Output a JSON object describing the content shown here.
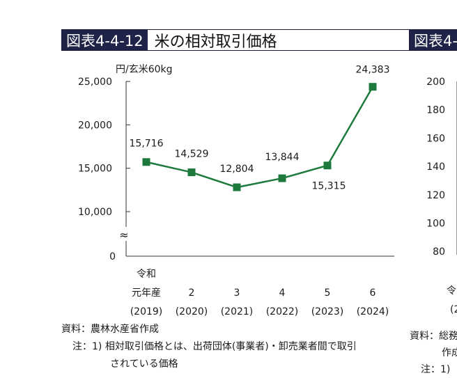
{
  "header_left": {
    "number": "図表4-4-12",
    "title": "米の相対取引価格"
  },
  "header_right": {
    "number": "図表4-"
  },
  "chart_data": {
    "type": "line",
    "title": "米の相対取引価格",
    "ylabel": "円/玄米60kg",
    "categories": [
      {
        "era": "令和",
        "year": "元年産",
        "ad": "(2019)"
      },
      {
        "era": "",
        "year": "2",
        "ad": "(2020)"
      },
      {
        "era": "",
        "year": "3",
        "ad": "(2021)"
      },
      {
        "era": "",
        "year": "4",
        "ad": "(2022)"
      },
      {
        "era": "",
        "year": "5",
        "ad": "(2023)"
      },
      {
        "era": "",
        "year": "6",
        "ad": "(2024)"
      }
    ],
    "values": [
      15716,
      14529,
      12804,
      13844,
      15315,
      24383
    ],
    "value_labels": [
      "15,716",
      "14,529",
      "12,804",
      "13,844",
      "15,315",
      "24,383"
    ],
    "yticks": [
      {
        "value": 10000,
        "label": "10,000"
      },
      {
        "value": 15000,
        "label": "15,000"
      },
      {
        "value": 20000,
        "label": "20,000"
      },
      {
        "value": 25000,
        "label": "25,000"
      }
    ],
    "zero_label": "0",
    "axis_break": "≈",
    "ylim": [
      10000,
      25000
    ],
    "line_color": "#1e7a3c"
  },
  "right_chart": {
    "yticks": [
      "200",
      "180",
      "160",
      "140",
      "120",
      "100",
      "80"
    ],
    "xlabel_partial": [
      "令",
      "(2"
    ]
  },
  "notes_left": {
    "source": "資料：農林水産省作成",
    "note1_line1": "注：1)  相対取引価格とは、出荷団体(事業者)・卸売業者間で取引",
    "note1_line2": "されている価格"
  },
  "notes_right": {
    "source": "資料：総務",
    "source2": "作成",
    "note": "注：1)"
  }
}
